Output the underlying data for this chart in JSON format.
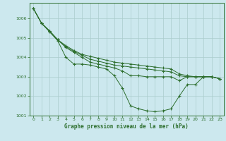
{
  "title": "Graphe pression niveau de la mer (hPa)",
  "background_color": "#cce8ee",
  "grid_color": "#aacccc",
  "line_color": "#2d6e2d",
  "marker_color": "#2d6e2d",
  "xlim": [
    -0.5,
    23.5
  ],
  "ylim": [
    1001.0,
    1006.8
  ],
  "yticks": [
    1001,
    1002,
    1003,
    1004,
    1005,
    1006
  ],
  "xticks": [
    0,
    1,
    2,
    3,
    4,
    5,
    6,
    7,
    8,
    9,
    10,
    11,
    12,
    13,
    14,
    15,
    16,
    17,
    18,
    19,
    20,
    21,
    22,
    23
  ],
  "series": [
    [
      1006.5,
      1005.75,
      1005.3,
      1004.85,
      1004.0,
      1003.65,
      1003.65,
      1003.6,
      1003.5,
      1003.4,
      1003.05,
      1002.4,
      1001.5,
      1001.35,
      1001.25,
      1001.2,
      1001.25,
      1001.35,
      1002.0,
      1002.6,
      1002.6,
      1003.0,
      1003.0,
      1002.9
    ],
    [
      1006.5,
      1005.75,
      1005.35,
      1004.9,
      1004.5,
      1004.25,
      1004.0,
      1003.75,
      1003.65,
      1003.55,
      1003.45,
      1003.3,
      1003.05,
      1003.05,
      1003.0,
      1003.0,
      1003.0,
      1003.0,
      1002.8,
      1003.0,
      1003.0,
      1003.0,
      1003.0,
      1002.9
    ],
    [
      1006.5,
      1005.75,
      1005.35,
      1004.9,
      1004.55,
      1004.3,
      1004.1,
      1003.9,
      1003.8,
      1003.7,
      1003.6,
      1003.55,
      1003.5,
      1003.45,
      1003.4,
      1003.35,
      1003.3,
      1003.25,
      1003.05,
      1003.0,
      1003.0,
      1003.0,
      1003.0,
      1002.9
    ],
    [
      1006.5,
      1005.75,
      1005.35,
      1004.9,
      1004.6,
      1004.35,
      1004.15,
      1004.05,
      1003.95,
      1003.85,
      1003.75,
      1003.7,
      1003.65,
      1003.6,
      1003.55,
      1003.5,
      1003.45,
      1003.4,
      1003.15,
      1003.05,
      1003.0,
      1003.0,
      1003.0,
      1002.9
    ]
  ]
}
